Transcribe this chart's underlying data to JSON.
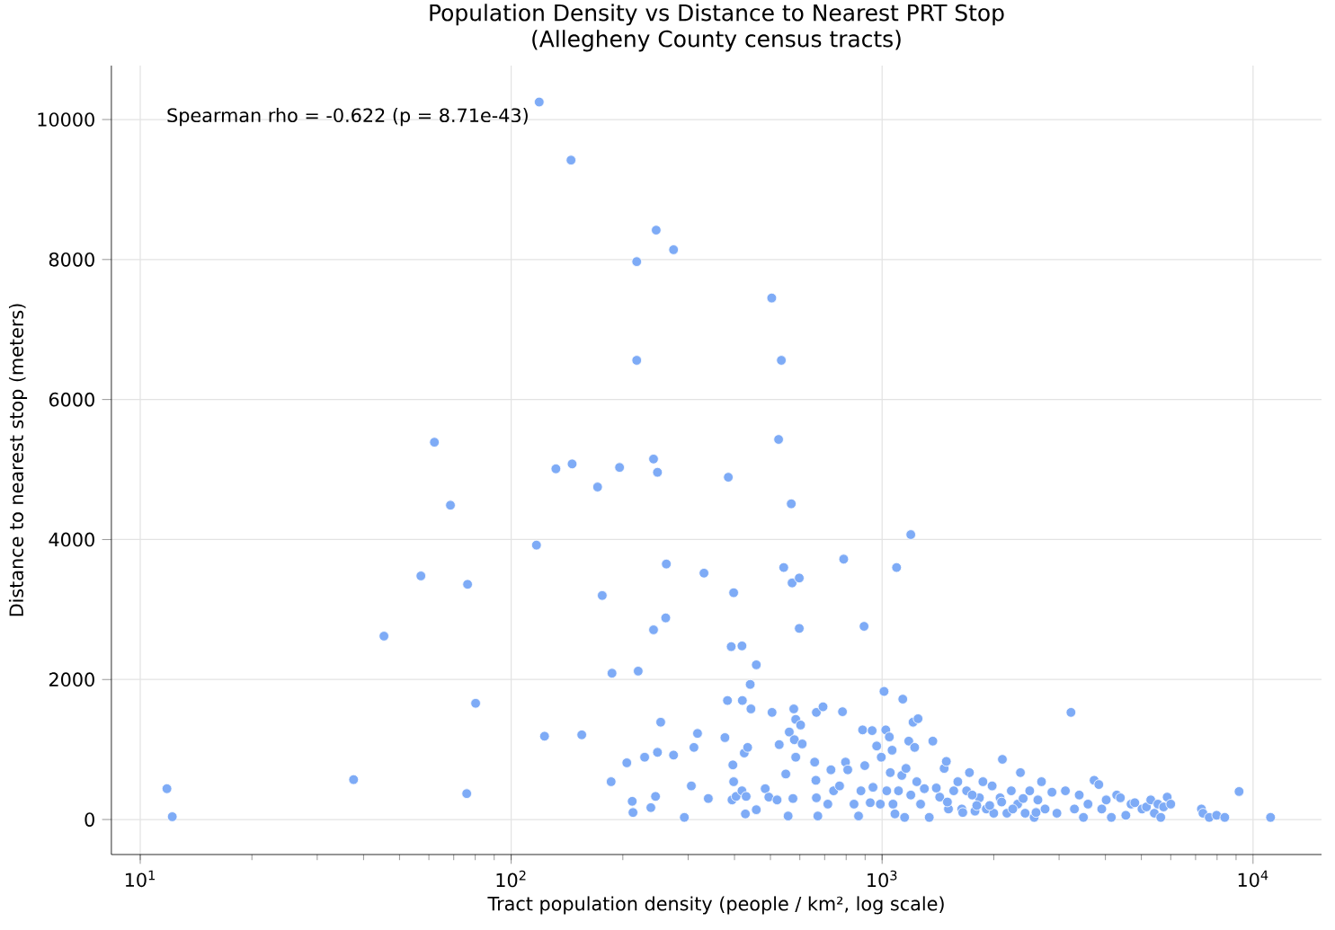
{
  "chart_data": {
    "type": "scatter",
    "title": "Population Density vs Distance to Nearest PRT Stop",
    "subtitle": "(Allegheny County census tracts)",
    "xlabel": "Tract population density (people / km², log scale)",
    "ylabel": "Distance to nearest stop (meters)",
    "annotations": [
      "Spearman rho = -0.622 (p = 8.71e-43)"
    ],
    "log": "x",
    "grid": true,
    "marker": "circle",
    "color": "#7eabf6",
    "xlim": [
      8.36,
      15300
    ],
    "ylim": [
      -500,
      10770
    ],
    "xticks": [
      {
        "value": 10,
        "label": "10$^{1}$"
      },
      {
        "value": 100,
        "label": "10$^{2}$"
      },
      {
        "value": 1000,
        "label": "10$^{3}$"
      },
      {
        "value": 10000,
        "label": "10$^{4}$"
      }
    ],
    "yticks": [
      0,
      2000,
      4000,
      6000,
      8000,
      10000
    ],
    "x": [
      11.8,
      12.2,
      37.6,
      45.4,
      57.1,
      62.1,
      68.6,
      75.9,
      76.3,
      80.2,
      117,
      119,
      123,
      132,
      145,
      146,
      155,
      171,
      176,
      186,
      187,
      196,
      205,
      212,
      213,
      218,
      218,
      220,
      229,
      238,
      242,
      242,
      245,
      246,
      248,
      248,
      253,
      261,
      262,
      274,
      274,
      293,
      306,
      311,
      318,
      331,
      340,
      377,
      383,
      385,
      392,
      394,
      396,
      398,
      398,
      404,
      419,
      420,
      425,
      419,
      428,
      430,
      434,
      441,
      443,
      458,
      458,
      484,
      495,
      504,
      505,
      521,
      528,
      535,
      526,
      543,
      550,
      558,
      562,
      569,
      572,
      575,
      578,
      585,
      580,
      585,
      598,
      598,
      603,
      609,
      658,
      665,
      663,
      665,
      671,
      693,
      714,
      728,
      740,
      768,
      782,
      788,
      797,
      808,
      840,
      864,
      877,
      886,
      894,
      898,
      929,
      940,
      945,
      967,
      989,
      995,
      1012,
      1023,
      1029,
      1046,
      1052,
      1064,
      1070,
      1083,
      1094,
      1107,
      1130,
      1150,
      1137,
      1160,
      1180,
      1195,
      1212,
      1224,
      1250,
      1195,
      1240,
      1270,
      1300,
      1340,
      1370,
      1430,
      1470,
      1490,
      1510,
      1560,
      1600,
      1640,
      1690,
      1720,
      1780,
      1830,
      1870,
      1910,
      1980,
      2000,
      2080,
      2110,
      2170,
      2230,
      2320,
      2360,
      2430,
      2500,
      2570,
      2630,
      2690,
      2750,
      2870,
      2960,
      3120,
      3230,
      3300,
      3400,
      3490,
      3590,
      3730,
      3840,
      3910,
      4020,
      4150,
      4290,
      4390,
      4540,
      4690,
      4800,
      5020,
      5160,
      5300,
      5420,
      5540,
      5640,
      5740,
      5870,
      6000,
      7260,
      7330,
      7620,
      7980,
      8390,
      9170,
      11150,
      1500,
      1650,
      1750,
      1950,
      2100,
      2250,
      2400,
      2600,
      1800,
      1400
    ],
    "values": [
      440,
      40,
      570,
      2620,
      3480,
      5390,
      4490,
      370,
      3360,
      1660,
      3920,
      10250,
      1190,
      5010,
      9420,
      5080,
      1210,
      4750,
      3200,
      540,
      2090,
      5030,
      810,
      260,
      100,
      6560,
      7970,
      2120,
      890,
      170,
      5150,
      2710,
      330,
      8420,
      960,
      4960,
      1390,
      2880,
      3650,
      920,
      8140,
      30,
      480,
      1030,
      1230,
      3520,
      300,
      1170,
      1700,
      4890,
      2470,
      280,
      780,
      3240,
      540,
      330,
      2480,
      1700,
      950,
      410,
      80,
      330,
      1030,
      1930,
      1580,
      2210,
      140,
      440,
      320,
      7450,
      1530,
      280,
      1070,
      6560,
      5430,
      3600,
      650,
      50,
      1250,
      4510,
      3380,
      300,
      1580,
      1430,
      1140,
      890,
      3450,
      2730,
      1350,
      1080,
      820,
      1530,
      560,
      310,
      50,
      1610,
      220,
      710,
      410,
      480,
      1540,
      3720,
      820,
      710,
      220,
      50,
      410,
      1280,
      2760,
      770,
      240,
      1270,
      460,
      1050,
      220,
      890,
      1830,
      1280,
      410,
      1180,
      670,
      990,
      220,
      80,
      3600,
      410,
      630,
      30,
      1720,
      730,
      1120,
      4070,
      1390,
      1030,
      1440,
      350,
      540,
      220,
      440,
      30,
      1120,
      320,
      730,
      830,
      150,
      410,
      540,
      150,
      410,
      670,
      120,
      310,
      540,
      150,
      480,
      90,
      310,
      860,
      90,
      410,
      220,
      670,
      90,
      410,
      30,
      280,
      540,
      150,
      390,
      90,
      410,
      1530,
      150,
      350,
      30,
      220,
      560,
      500,
      150,
      280,
      30,
      350,
      310,
      60,
      220,
      240,
      150,
      180,
      280,
      90,
      220,
      30,
      180,
      320,
      220,
      150,
      90,
      30,
      60,
      30,
      400,
      30,
      250,
      100,
      350,
      200,
      250,
      150,
      300,
      100,
      200,
      450
    ]
  }
}
